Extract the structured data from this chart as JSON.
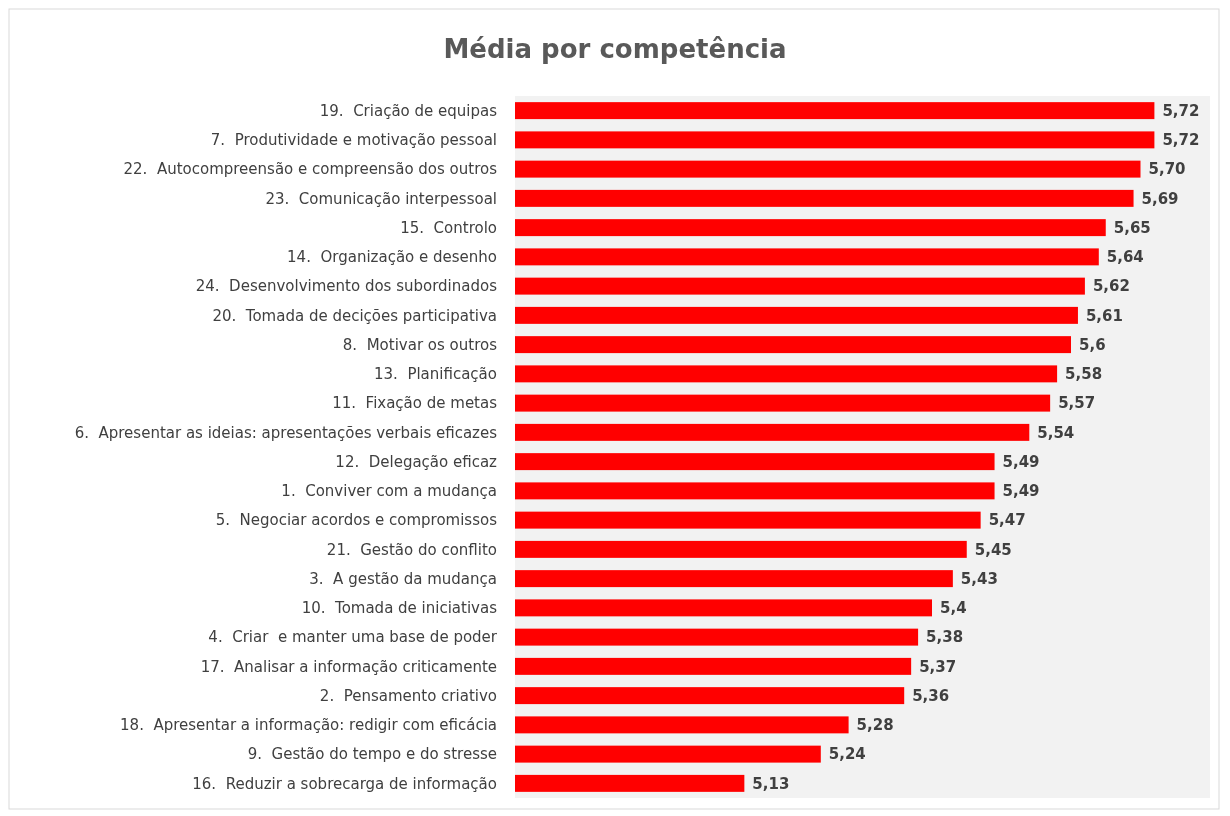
{
  "chart_data": {
    "type": "bar",
    "orientation": "horizontal",
    "title": "Média por competência",
    "categories": [
      "19.  Criação de equipas",
      "7.  Produtividade e motivação pessoal",
      "22.  Autocompreensão e compreensão dos outros",
      "23.  Comunicação interpessoal",
      "15.  Controlo",
      "14.  Organização e desenho",
      "24.  Desenvolvimento dos subordinados",
      "20.  Tomada de decições participativa",
      "8.  Motivar os outros",
      "13.  Planificação",
      "11.  Fixação de metas",
      "6.  Apresentar as ideias: apresentações verbais eficazes",
      "12.  Delegação eficaz",
      "1.  Conviver com a mudança",
      "5.  Negociar acordos e compromissos",
      "21.  Gestão do conflito",
      "3.  A gestão da mudança",
      "10.  Tomada de iniciativas",
      "4.  Criar  e manter uma base de poder",
      "17.  Analisar a informação criticamente",
      "2.  Pensamento criativo",
      "18.  Apresentar a informação: redigir com eficácia",
      "9.  Gestão do tempo e do stresse",
      "16.  Reduzir a sobrecarga de informação"
    ],
    "values": [
      5.72,
      5.72,
      5.7,
      5.69,
      5.65,
      5.64,
      5.62,
      5.61,
      5.6,
      5.58,
      5.57,
      5.54,
      5.49,
      5.49,
      5.47,
      5.45,
      5.43,
      5.4,
      5.38,
      5.37,
      5.36,
      5.28,
      5.24,
      5.13
    ],
    "value_labels": [
      "5,72",
      "5,72",
      "5,70",
      "5,69",
      "5,65",
      "5,64",
      "5,62",
      "5,61",
      "5,6",
      "5,58",
      "5,57",
      "5,54",
      "5,49",
      "5,49",
      "5,47",
      "5,45",
      "5,43",
      "5,4",
      "5,38",
      "5,37",
      "5,36",
      "5,28",
      "5,24",
      "5,13"
    ],
    "color": "#ff0000",
    "xlim": [
      4.8,
      5.8
    ],
    "tick_labels": "y"
  }
}
